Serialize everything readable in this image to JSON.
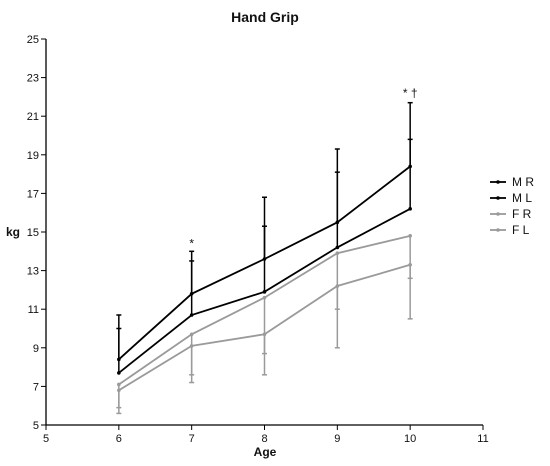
{
  "chart_data": {
    "type": "line",
    "title": "Hand Grip",
    "xlabel": "Age",
    "ylabel": "kg",
    "xlim": [
      5,
      11
    ],
    "ylim": [
      5,
      25
    ],
    "x_ticks": [
      5,
      6,
      7,
      8,
      9,
      10,
      11
    ],
    "y_ticks": [
      5,
      7,
      9,
      11,
      13,
      15,
      17,
      19,
      21,
      23,
      25
    ],
    "x": [
      6,
      7,
      8,
      9,
      10
    ],
    "grid": false,
    "legend_position": "right",
    "series": [
      {
        "name": "M R",
        "color": "#000000",
        "values": [
          8.4,
          11.8,
          13.6,
          15.5,
          18.4
        ],
        "error_upper": [
          10.7,
          14.0,
          16.8,
          19.3,
          21.7
        ]
      },
      {
        "name": "M L",
        "color": "#000000",
        "values": [
          7.7,
          10.7,
          11.9,
          14.2,
          16.2
        ],
        "error_upper": [
          10.0,
          13.5,
          15.3,
          18.1,
          19.8
        ]
      },
      {
        "name": "F R",
        "color": "#9a9a9a",
        "values": [
          7.1,
          9.7,
          11.6,
          13.9,
          14.8
        ],
        "error_lower": [
          5.9,
          7.2,
          8.7,
          11.0,
          12.6
        ]
      },
      {
        "name": "F L",
        "color": "#9a9a9a",
        "values": [
          6.8,
          9.1,
          9.7,
          12.2,
          13.3
        ],
        "error_lower": [
          5.6,
          7.6,
          7.6,
          9.0,
          10.5
        ]
      }
    ],
    "annotations": [
      {
        "x": 7,
        "y": 14.4,
        "text": "*"
      },
      {
        "x": 10,
        "y": 22.2,
        "text": "* †"
      }
    ]
  }
}
